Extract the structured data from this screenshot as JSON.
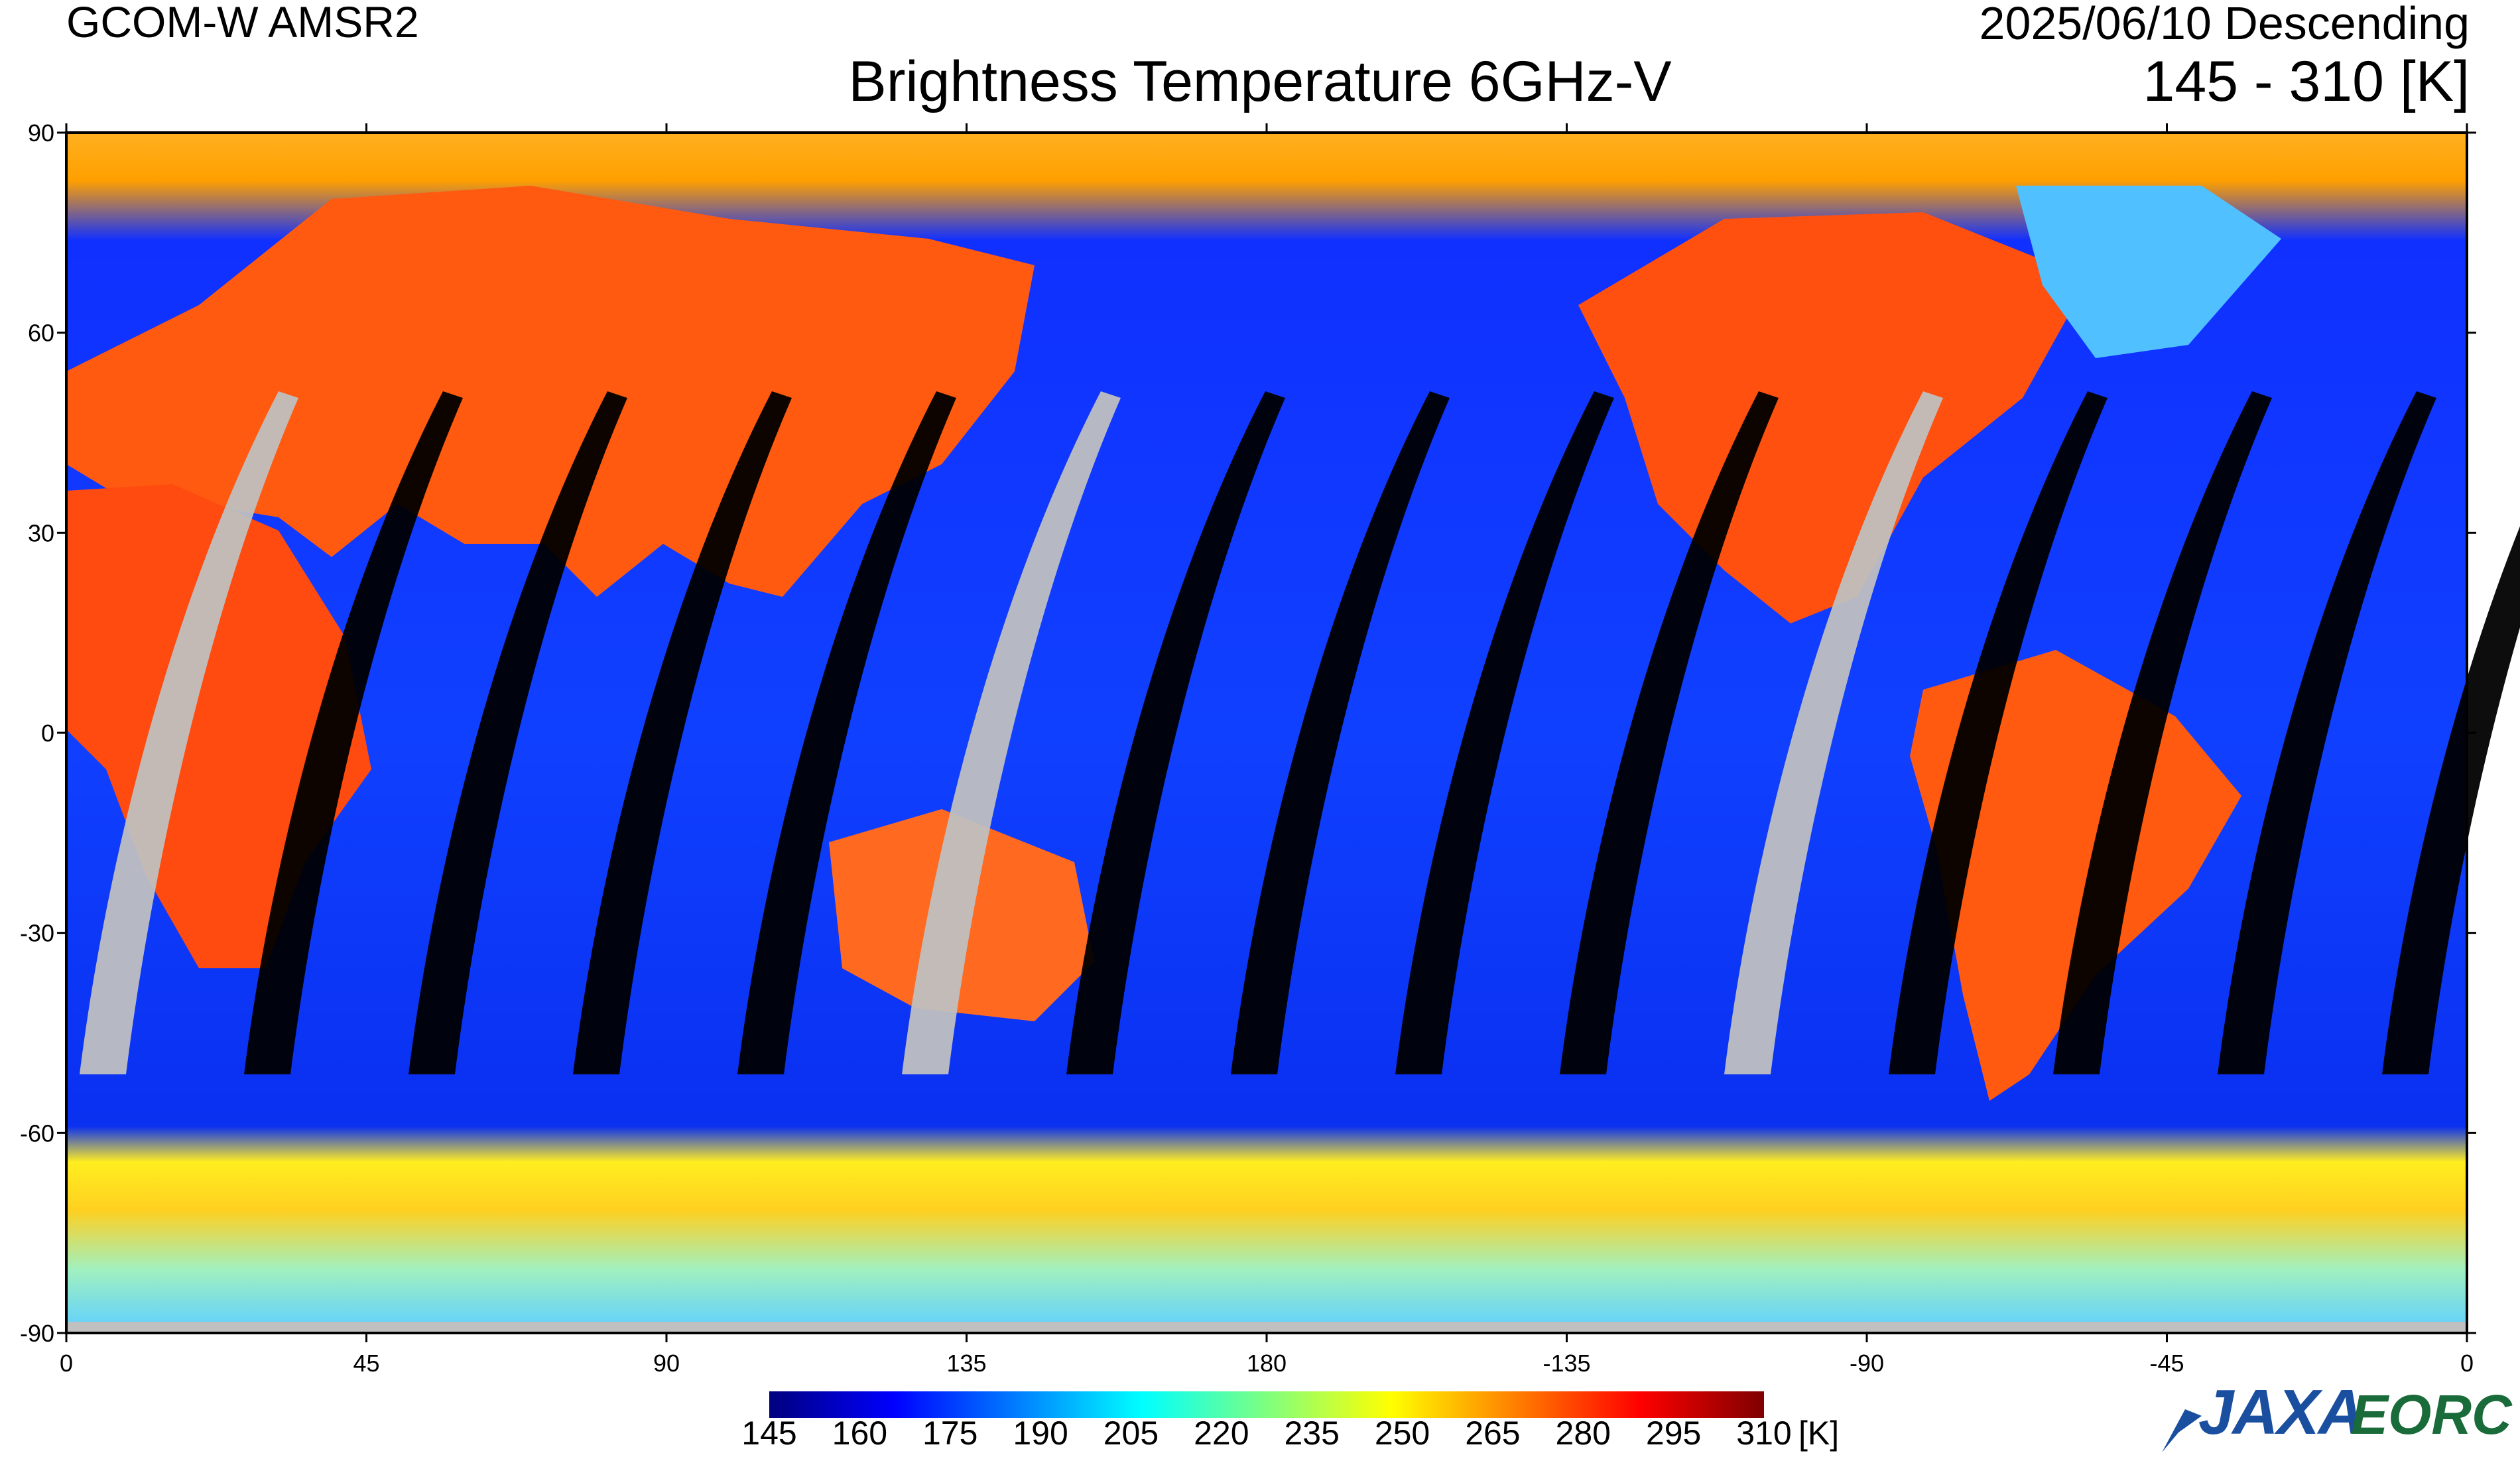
{
  "header": {
    "satellite": "GCOM-W  AMSR2",
    "date_pass": "2025/06/10  Descending",
    "title": "Brightness Temperature 6GHz-V",
    "range": "145  - 310 [K]"
  },
  "map": {
    "projection": "equirectangular",
    "lon_range": [
      0,
      360
    ],
    "lat_range": [
      -90,
      90
    ],
    "lat_ticks": [
      "90",
      "60",
      "30",
      "0",
      "-30",
      "-60",
      "-90"
    ],
    "lon_ticks": [
      "0",
      "45",
      "90",
      "135",
      "180",
      "-135",
      "-90",
      "-45",
      "0"
    ],
    "no_data_land_color": "#c0c0c0",
    "no_data_ocean_color": "#000000",
    "swath_gap_count": 15
  },
  "colorbar": {
    "min": 145,
    "max": 310,
    "unit": "[K]",
    "labels": [
      "145",
      "160",
      "175",
      "190",
      "205",
      "220",
      "235",
      "250",
      "265",
      "280",
      "295",
      "310"
    ],
    "colors": [
      "#00007f",
      "#0000ff",
      "#007fff",
      "#00ffff",
      "#7fff7f",
      "#ffff00",
      "#ff7f00",
      "#ff0000",
      "#7f0000"
    ]
  },
  "logo": {
    "org": "JAXA",
    "dept": "EORC",
    "colors": {
      "jaxa": "#1a4fa0",
      "eorc": "#1a6b3a"
    }
  }
}
